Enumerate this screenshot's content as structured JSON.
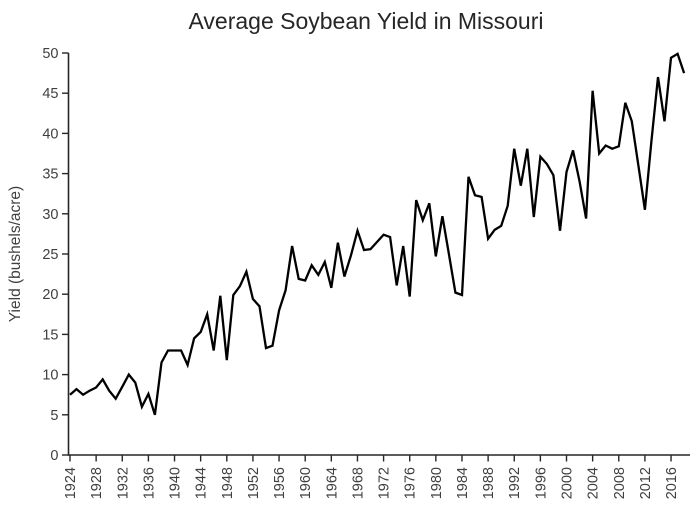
{
  "chart_data": {
    "type": "line",
    "title": "Average Soybean Yield in Missouri",
    "xlabel": "",
    "ylabel": "Yield (bushels/acre)",
    "ylim": [
      0,
      50
    ],
    "yticks": [
      0,
      5,
      10,
      15,
      20,
      25,
      30,
      35,
      40,
      45,
      50
    ],
    "xticks": [
      1924,
      1928,
      1932,
      1936,
      1940,
      1944,
      1948,
      1952,
      1956,
      1960,
      1964,
      1968,
      1972,
      1976,
      1980,
      1984,
      1988,
      1992,
      1996,
      2000,
      2004,
      2008,
      2012,
      2016
    ],
    "grid": false,
    "legend": false,
    "line_color": "#000000",
    "axis_color": "#262626",
    "tick_label_color": "#404040",
    "title_color": "#262626",
    "x": [
      1924,
      1925,
      1926,
      1927,
      1928,
      1929,
      1930,
      1931,
      1932,
      1933,
      1934,
      1935,
      1936,
      1937,
      1938,
      1939,
      1940,
      1941,
      1942,
      1943,
      1944,
      1945,
      1946,
      1947,
      1948,
      1949,
      1950,
      1951,
      1952,
      1953,
      1954,
      1955,
      1956,
      1957,
      1958,
      1959,
      1960,
      1961,
      1962,
      1963,
      1964,
      1965,
      1966,
      1967,
      1968,
      1969,
      1970,
      1971,
      1972,
      1973,
      1974,
      1975,
      1976,
      1977,
      1978,
      1979,
      1980,
      1981,
      1982,
      1983,
      1984,
      1985,
      1986,
      1987,
      1988,
      1989,
      1990,
      1991,
      1992,
      1993,
      1994,
      1995,
      1996,
      1997,
      1998,
      1999,
      2000,
      2001,
      2002,
      2003,
      2004,
      2005,
      2006,
      2007,
      2008,
      2009,
      2010,
      2011,
      2012,
      2013,
      2014,
      2015,
      2016,
      2017,
      2018
    ],
    "values": [
      7.5,
      8.2,
      7.5,
      8.0,
      8.4,
      9.4,
      8.0,
      7.0,
      8.5,
      10.0,
      9.0,
      6.0,
      7.6,
      5.0,
      11.5,
      13.0,
      13.0,
      13.0,
      11.2,
      14.5,
      15.3,
      17.5,
      13.0,
      19.8,
      11.8,
      19.9,
      21.0,
      22.8,
      19.4,
      18.5,
      13.3,
      13.6,
      18.0,
      20.5,
      26.0,
      21.9,
      21.7,
      23.6,
      22.4,
      24.0,
      20.8,
      26.4,
      22.2,
      24.8,
      27.9,
      25.5,
      25.6,
      26.5,
      27.4,
      27.1,
      21.1,
      26.0,
      19.7,
      31.7,
      29.2,
      31.3,
      24.7,
      29.7,
      25.0,
      20.2,
      19.9,
      34.6,
      32.3,
      32.1,
      26.9,
      28.0,
      28.5,
      31.0,
      38.1,
      33.5,
      38.1,
      29.6,
      37.1,
      36.2,
      34.8,
      27.9,
      35.2,
      37.9,
      34.0,
      29.4,
      45.3,
      37.5,
      38.5,
      38.1,
      38.4,
      43.8,
      41.5,
      36.0,
      30.5,
      39.0,
      47.0,
      41.5,
      49.4,
      49.9,
      47.5
    ]
  }
}
